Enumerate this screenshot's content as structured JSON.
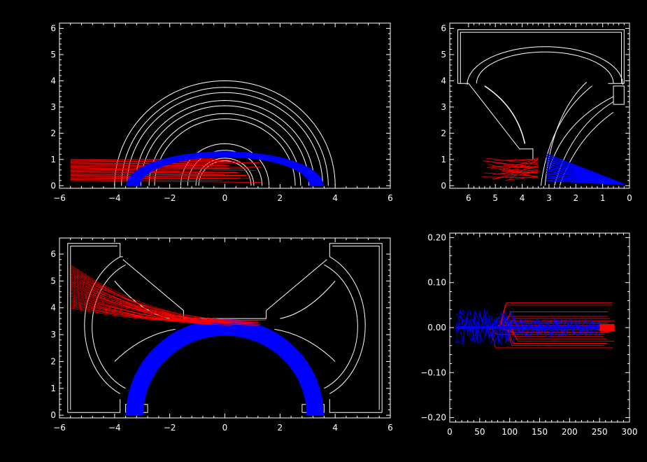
{
  "chart_data": [
    {
      "id": "top_left",
      "type": "line",
      "title": "",
      "xlabel": "",
      "ylabel": "",
      "xlim": [
        -6,
        6
      ],
      "ylim": [
        -0.1,
        6.2
      ],
      "x_tick_labels": [
        "−6",
        "−4",
        "−2",
        "0",
        "2",
        "4",
        "6"
      ],
      "x_tick_values": [
        -6,
        -4,
        -2,
        0,
        2,
        4,
        6
      ],
      "y_tick_labels": [
        "0",
        "1",
        "2",
        "3",
        "4",
        "5",
        "6"
      ],
      "y_tick_values": [
        0,
        1,
        2,
        3,
        4,
        5,
        6
      ],
      "wall_arcs_radii": [
        4.0,
        3.75,
        3.55,
        3.25,
        3.05,
        2.75,
        2.55,
        1.6,
        1.35,
        1.05,
        0.95
      ],
      "series": [
        {
          "color": "#ff0000",
          "kind": "rays-left",
          "x_start": -5.6,
          "x_end": -0.5,
          "y_min": 0.2,
          "y_max": 1.0,
          "count": 26
        },
        {
          "color": "#0000ff",
          "kind": "arc-band",
          "radius_min": 3.1,
          "radius_max": 3.55,
          "y_scale": 0.36,
          "count": 10
        }
      ]
    },
    {
      "id": "top_right",
      "type": "line",
      "title": "",
      "xlabel": "",
      "ylabel": "",
      "xlim": [
        6.7,
        0
      ],
      "ylim": [
        -0.1,
        6.2
      ],
      "x_tick_labels": [
        "6",
        "5",
        "4",
        "3",
        "2",
        "1",
        "0"
      ],
      "x_tick_values": [
        6,
        5,
        4,
        3,
        2,
        1,
        0
      ],
      "y_tick_labels": [
        "0",
        "1",
        "2",
        "3",
        "4",
        "5",
        "6"
      ],
      "y_tick_values": [
        0,
        1,
        2,
        3,
        4,
        5,
        6
      ],
      "series": [
        {
          "color": "#ff0000",
          "kind": "rays-fan",
          "x_start": 5.6,
          "x_end": 3.4,
          "y_min": 0.1,
          "y_max": 1.05,
          "count": 22
        },
        {
          "color": "#0000ff",
          "kind": "rays-converge",
          "x_start": 3.1,
          "x_end": 0.2,
          "y_min": 0.2,
          "y_max": 1.2,
          "count": 12
        }
      ]
    },
    {
      "id": "bottom_left",
      "type": "line",
      "title": "",
      "xlabel": "",
      "ylabel": "",
      "xlim": [
        -6,
        6
      ],
      "ylim": [
        -0.1,
        6.6
      ],
      "x_tick_labels": [
        "−6",
        "−4",
        "−2",
        "0",
        "2",
        "4",
        "6"
      ],
      "x_tick_values": [
        -6,
        -4,
        -2,
        0,
        2,
        4,
        6
      ],
      "y_tick_labels": [
        "0",
        "1",
        "2",
        "3",
        "4",
        "5",
        "6"
      ],
      "y_tick_values": [
        0,
        1,
        2,
        3,
        4,
        5,
        6
      ],
      "series": [
        {
          "color": "#ff0000",
          "kind": "rays-funnel",
          "x_start": -5.6,
          "x_end": -1.0,
          "y_start_min": 4.0,
          "y_start_max": 5.6,
          "y_end": 3.35,
          "count": 30
        },
        {
          "color": "#0000ff",
          "kind": "arc-band",
          "radius_min": 3.0,
          "radius_max": 3.55,
          "center_y": 0.0,
          "count": 12
        }
      ]
    },
    {
      "id": "bottom_right",
      "type": "line",
      "title": "",
      "xlabel": "",
      "ylabel": "",
      "xlim": [
        0,
        300
      ],
      "ylim": [
        -0.21,
        0.21
      ],
      "x_tick_labels": [
        "0",
        "50",
        "100",
        "150",
        "200",
        "250",
        "300"
      ],
      "x_tick_values": [
        0,
        50,
        100,
        150,
        200,
        250,
        300
      ],
      "y_tick_labels": [
        "0.20",
        "0.10",
        "0.00",
        "−0.10",
        "−0.20"
      ],
      "y_tick_values": [
        0.2,
        0.1,
        0.0,
        -0.1,
        -0.2
      ],
      "series": [
        {
          "color": "#ff0000",
          "kind": "step-traces",
          "levels": [
            0.055,
            0.05,
            0.035,
            0.025,
            0.02,
            0.015,
            0.01,
            0.005,
            -0.005,
            -0.01,
            -0.015,
            -0.02,
            -0.025,
            -0.03,
            -0.035,
            -0.04,
            -0.045
          ],
          "x_start": 65,
          "x_end": 275
        },
        {
          "color": "#0000ff",
          "kind": "noise-traces",
          "x_start": 10,
          "x_end": 250,
          "amplitude": 0.02
        }
      ]
    }
  ]
}
